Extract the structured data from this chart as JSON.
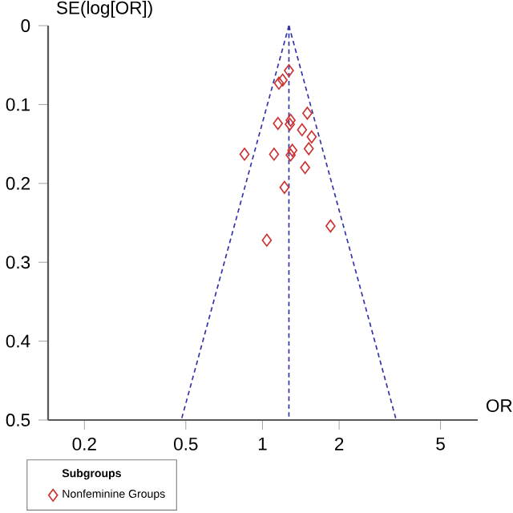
{
  "chart_data": {
    "type": "scatter",
    "xlabel": "OR",
    "ylabel": "SE(log[OR])",
    "legend_title": "Subgroups",
    "legend": "bottom",
    "log": "x",
    "xlim": [
      0.144,
      7
    ],
    "xticks": [
      0.2,
      0.5,
      1,
      2,
      5
    ],
    "ylim": [
      0.5,
      0
    ],
    "yticks": [
      0,
      0.1,
      0.2,
      0.3,
      0.4,
      0.5
    ],
    "series": [
      {
        "name": "Nonfeminine Groups",
        "marker": "diamond",
        "color": "#cc3333",
        "x": [
          1.27,
          1.16,
          1.2,
          1.5,
          1.15,
          1.29,
          1.28,
          1.43,
          1.56,
          0.85,
          1.11,
          1.31,
          1.29,
          1.52,
          1.47,
          1.22,
          1.85,
          1.04
        ],
        "values": [
          0.057,
          0.073,
          0.069,
          0.111,
          0.124,
          0.12,
          0.125,
          0.132,
          0.141,
          0.163,
          0.163,
          0.158,
          0.164,
          0.156,
          0.18,
          0.205,
          0.254,
          0.272
        ]
      },
      {
        "type": "line",
        "line_style": "dashed",
        "color": "#3333aa",
        "x": [
          1.27,
          0.48
        ],
        "values": [
          0,
          0.5
        ]
      },
      {
        "type": "line",
        "line_style": "dashed",
        "color": "#3333aa",
        "x": [
          1.27,
          3.35
        ],
        "values": [
          0,
          0.5
        ]
      }
    ],
    "ref_lines": [
      {
        "axis": "x",
        "value": 1.27,
        "color": "#3333aa",
        "line_style": "dashed"
      }
    ]
  }
}
